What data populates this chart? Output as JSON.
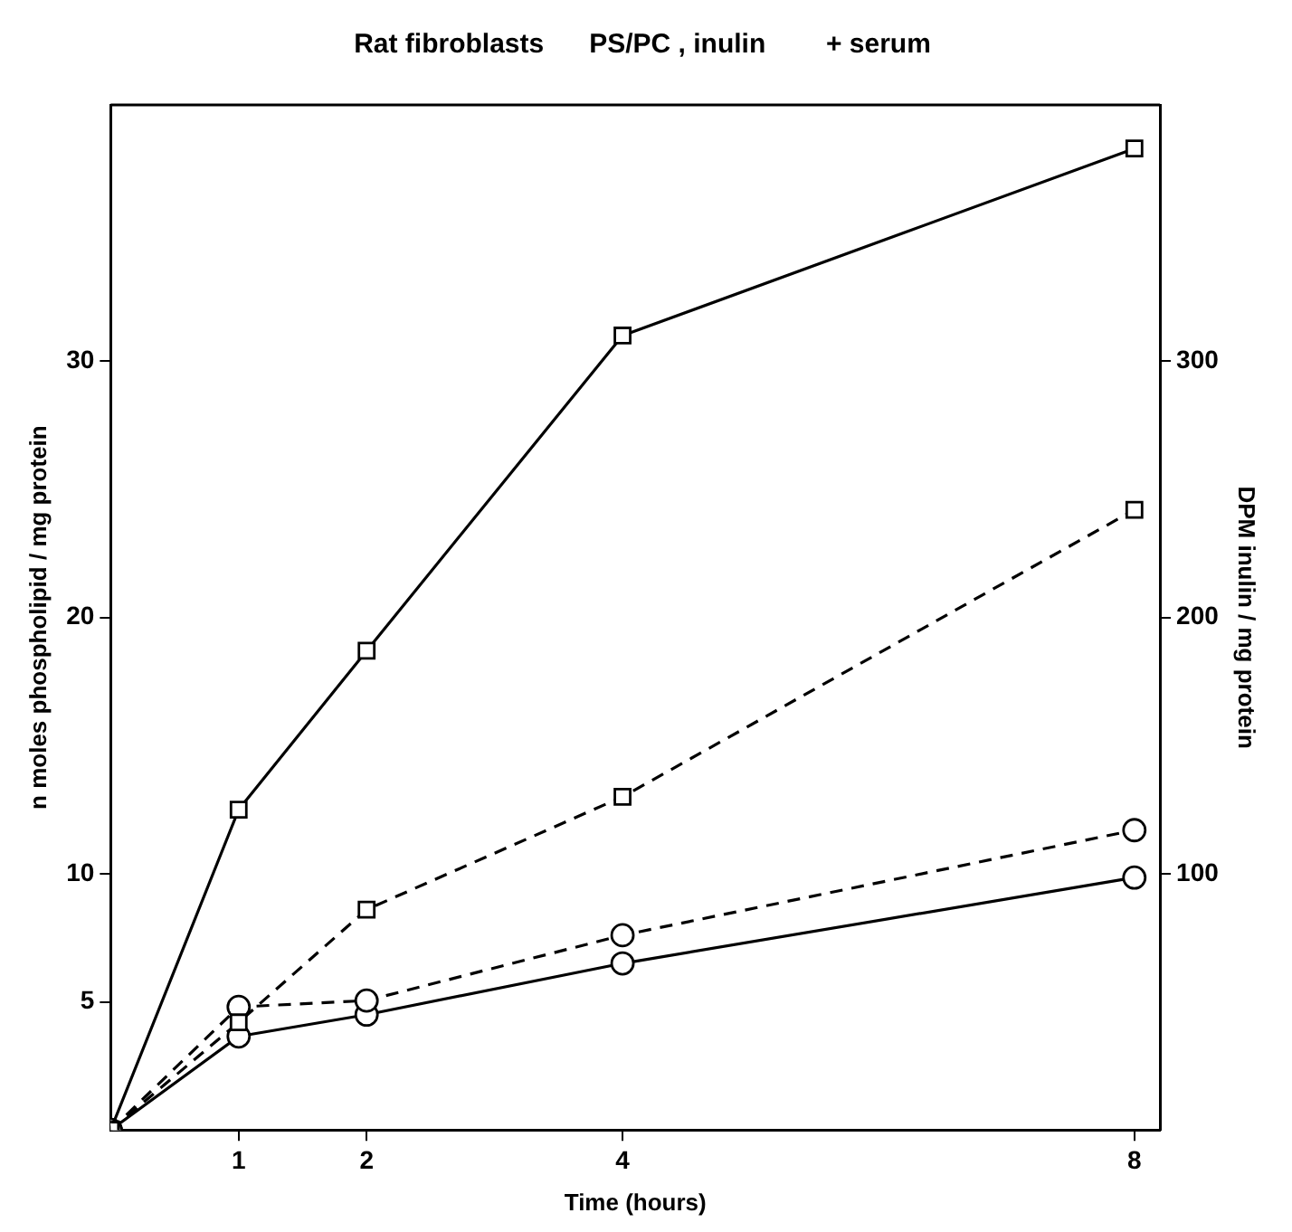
{
  "chart_data": {
    "type": "line",
    "title": "Rat fibroblasts      PS/PC , inulin        + serum",
    "xlabel": "Time (hours)",
    "ylabel": "n moles phospholipid / mg protein",
    "y2label": "DPM inulin / mg protein",
    "x": [
      0,
      1,
      2,
      4,
      8
    ],
    "xlim": [
      0,
      8.2
    ],
    "xticks": [
      1,
      2,
      4,
      8
    ],
    "ylim": [
      0,
      40
    ],
    "yticks": [
      5,
      10,
      20,
      30
    ],
    "y2lim": [
      0,
      400
    ],
    "y2ticks": [
      100,
      200,
      300
    ],
    "grid": false,
    "legend": false,
    "series": [
      {
        "color": "#000000",
        "axis": "y2",
        "marker": "square",
        "line_style": "solid",
        "values": [
          0,
          125,
          187,
          310,
          383
        ]
      },
      {
        "color": "#000000",
        "axis": "y2",
        "marker": "square",
        "line_style": "dashed",
        "values": [
          0,
          42,
          86,
          130,
          242
        ]
      },
      {
        "color": "#000000",
        "axis": "y",
        "marker": "circle",
        "line_style": "dashed",
        "values": [
          0,
          4.8,
          5.05,
          7.6,
          11.7
        ]
      },
      {
        "color": "#000000",
        "axis": "y",
        "marker": "circle",
        "line_style": "solid",
        "values": [
          0,
          3.65,
          4.5,
          6.5,
          9.85
        ]
      }
    ]
  }
}
